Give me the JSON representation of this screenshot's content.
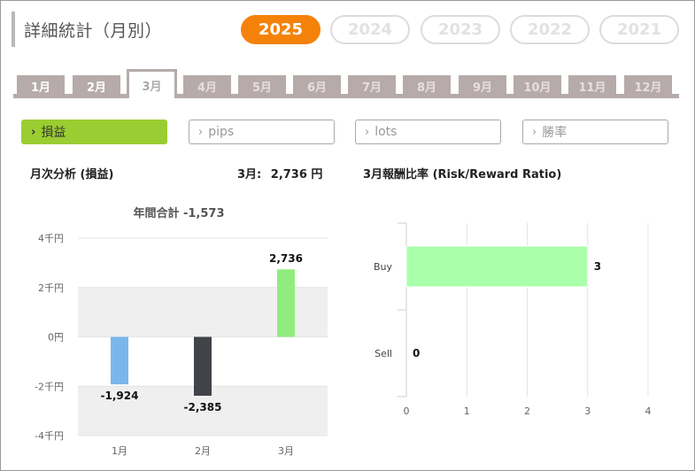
{
  "page_title": "詳細統計（月別）",
  "years": [
    "2025",
    "2024",
    "2023",
    "2022",
    "2021"
  ],
  "active_year": "2025",
  "months": [
    "1月",
    "2月",
    "3月",
    "4月",
    "5月",
    "6月",
    "7月",
    "8月",
    "9月",
    "10月",
    "11月",
    "12月"
  ],
  "active_month": "3月",
  "metrics": [
    "損益",
    "pips",
    "lots",
    "勝率"
  ],
  "active_metric": "損益",
  "chevron_icon": "›",
  "left_panel": {
    "title": "月次分析 (損益)",
    "current_label": "3月:",
    "current_value": "2,736 円",
    "total_label": "年間合計 -1,573"
  },
  "right_panel": {
    "title": "3月報酬比率 (Risk/Reward Ratio)"
  },
  "colors": {
    "accent_orange": "#f4820a",
    "metric_active": "#9acd32",
    "tab": "#b6abaa",
    "bar_jan": "#7ab6ec",
    "bar_feb": "#404348",
    "bar_mar": "#90ed7d",
    "rr_bar": "#aaffaa"
  },
  "chart_data": [
    {
      "type": "bar",
      "title": "年間合計 -1,573",
      "categories": [
        "1月",
        "2月",
        "3月"
      ],
      "values": [
        -1924,
        -2385,
        2736
      ],
      "data_labels": [
        "-1,924",
        "-2,385",
        "2,736"
      ],
      "ylim": [
        -4000,
        4000
      ],
      "yticks": [
        4000,
        2000,
        0,
        -2000,
        -4000
      ],
      "ytick_labels": [
        "4千円",
        "2千円",
        "0円",
        "-2千円",
        "-4千円"
      ],
      "grid": true
    },
    {
      "type": "bar",
      "orientation": "horizontal",
      "categories": [
        "Buy",
        "Sell"
      ],
      "values": [
        3,
        0
      ],
      "data_labels": [
        "3",
        "0"
      ],
      "xlim": [
        0,
        4
      ],
      "xticks": [
        "0",
        "1",
        "2",
        "3",
        "4"
      ],
      "grid": true
    }
  ]
}
